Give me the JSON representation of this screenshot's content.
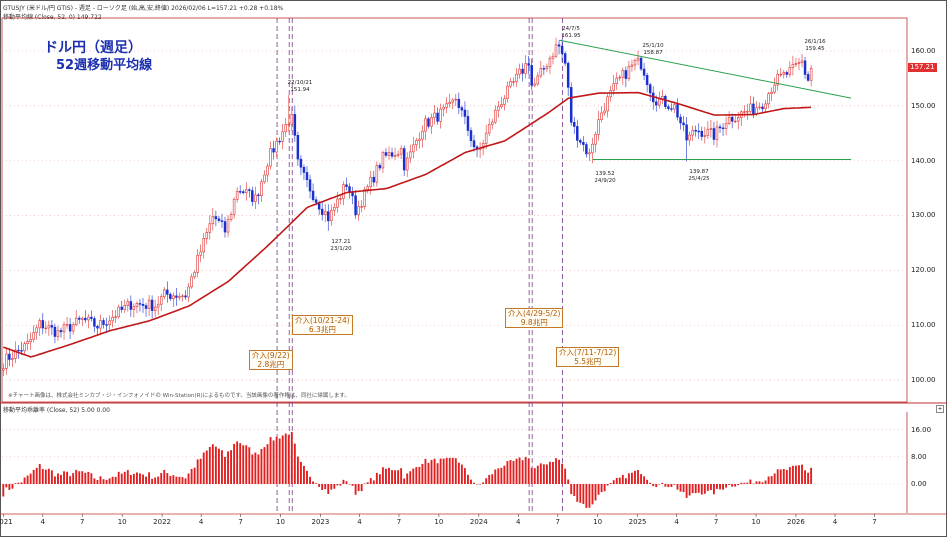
{
  "header": {
    "line1": "GTUSJY (米ドル/円 GTIS) - 週足 - ローソク足 (始,高,安,終値) 2026/02/06 L=157.21 +0.28 +0.18%",
    "line2": "移動平均線 (Close, 52, 0) 149.722"
  },
  "title": {
    "line1": "ドル円（週足）",
    "line2": "52週移動平均線"
  },
  "lower_panel_header": "移動平均乖離率 (Close, 52) 5.00 0.00",
  "note": "※チャート画像は、株式会社ミンカブ・ジ・インフォノイドの Win-Station(R)によるものです。当該画像の著作権は、同社に帰属します。",
  "last_price_label": "157.21",
  "colors": {
    "up": "#e03030",
    "down": "#1a2fd0",
    "ma": "#c01818",
    "trend": "#2aa050",
    "guide": "#7a3a8a",
    "deviation": "#e02020"
  },
  "annotations": [
    {
      "id": "int1",
      "line1": "介入(9/22)",
      "line2": "2.8兆円"
    },
    {
      "id": "int2",
      "line1": "介入(10/21-24)",
      "line2": "6.3兆円"
    },
    {
      "id": "int3",
      "line1": "介入(4/29-5/2)",
      "line2": "9.8兆円"
    },
    {
      "id": "int4",
      "line1": "介入(7/11-7/12)",
      "line2": "5.5兆円"
    }
  ],
  "price_labels": [
    {
      "date": "22/10/21",
      "price": "151.94"
    },
    {
      "date": "23/1/20",
      "price": "127.21"
    },
    {
      "date": "24/7/5",
      "price": "161.95"
    },
    {
      "date": "24/9/20",
      "price": "139.52"
    },
    {
      "date": "25/1/10",
      "price": "158.87"
    },
    {
      "date": "25/4/25",
      "price": "139.87"
    },
    {
      "date": "26/1/16",
      "price": "159.45"
    }
  ],
  "chart_data": {
    "type": "candlestick",
    "title": "ドル円（週足） 52週移動平均線",
    "yticks": [
      "100.00",
      "110.00",
      "120.00",
      "130.00",
      "140.00",
      "150.00",
      "160.00"
    ],
    "lower_yticks": [
      "16.00",
      "8.00",
      "0.00"
    ],
    "xticks": [
      "2021",
      "4",
      "7",
      "10",
      "2022",
      "4",
      "7",
      "10",
      "2023",
      "4",
      "7",
      "10",
      "2024",
      "4",
      "7",
      "10",
      "2025",
      "4",
      "7",
      "10",
      "2026",
      "4",
      "7"
    ],
    "ylim": [
      96,
      166
    ],
    "anchors": [
      [
        "2020-12-31",
        103.2
      ],
      [
        "2021-01-08",
        103.9
      ],
      [
        "2021-02-26",
        106.5
      ],
      [
        "2021-03-26",
        110.3
      ],
      [
        "2021-05-07",
        108.6
      ],
      [
        "2021-07-02",
        111.0
      ],
      [
        "2021-08-06",
        109.8
      ],
      [
        "2021-10-22",
        113.9
      ],
      [
        "2021-12-17",
        113.6
      ],
      [
        "2022-01-07",
        115.6
      ],
      [
        "2022-02-25",
        115.5
      ],
      [
        "2022-03-25",
        122.1
      ],
      [
        "2022-04-29",
        130.0
      ],
      [
        "2022-05-27",
        127.1
      ],
      [
        "2022-06-24",
        135.0
      ],
      [
        "2022-08-05",
        133.0
      ],
      [
        "2022-09-02",
        140.2
      ],
      [
        "2022-09-23",
        143.4
      ],
      [
        "2022-10-21",
        147.6
      ],
      [
        "2022-10-28",
        147.5
      ],
      [
        "2022-11-11",
        138.8
      ],
      [
        "2022-12-23",
        132.8
      ],
      [
        "2023-01-20",
        129.5
      ],
      [
        "2023-03-03",
        136.0
      ],
      [
        "2023-03-24",
        130.7
      ],
      [
        "2023-05-26",
        140.6
      ],
      [
        "2023-07-07",
        142.1
      ],
      [
        "2023-07-14",
        138.8
      ],
      [
        "2023-08-25",
        146.4
      ],
      [
        "2023-10-27",
        149.7
      ],
      [
        "2023-11-10",
        151.5
      ],
      [
        "2023-12-29",
        141.0
      ],
      [
        "2024-02-16",
        150.2
      ],
      [
        "2024-04-26",
        158.3
      ],
      [
        "2024-05-03",
        153.0
      ],
      [
        "2024-06-28",
        160.9
      ],
      [
        "2024-07-05",
        160.8
      ],
      [
        "2024-07-19",
        157.5
      ],
      [
        "2024-08-02",
        146.5
      ],
      [
        "2024-09-13",
        140.8
      ],
      [
        "2024-09-20",
        143.9
      ],
      [
        "2024-10-11",
        149.1
      ],
      [
        "2024-11-15",
        154.3
      ],
      [
        "2024-12-27",
        157.9
      ],
      [
        "2025-01-10",
        157.7
      ],
      [
        "2025-02-07",
        151.4
      ],
      [
        "2025-03-28",
        149.8
      ],
      [
        "2025-04-25",
        143.7
      ],
      [
        "2025-05-16",
        145.7
      ],
      [
        "2025-06-27",
        144.6
      ],
      [
        "2025-07-25",
        147.5
      ],
      [
        "2025-09-26",
        149.5
      ],
      [
        "2025-10-17",
        150.6
      ],
      [
        "2025-11-14",
        154.5
      ],
      [
        "2025-12-26",
        156.6
      ],
      [
        "2026-01-16",
        158.1
      ],
      [
        "2026-01-23",
        155.7
      ],
      [
        "2026-01-30",
        154.7
      ],
      [
        "2026-02-06",
        157.2
      ]
    ],
    "extremes": [
      [
        "2022-10-21",
        151.94,
        "high"
      ],
      [
        "2023-01-20",
        127.21,
        "low"
      ],
      [
        "2024-07-05",
        161.95,
        "high"
      ],
      [
        "2024-09-20",
        139.52,
        "low"
      ],
      [
        "2025-01-10",
        158.87,
        "high"
      ],
      [
        "2025-04-25",
        139.87,
        "low"
      ],
      [
        "2026-01-16",
        159.45,
        "high"
      ]
    ],
    "ma52_anchors": [
      [
        "2020-12-31",
        106.0
      ],
      [
        "2021-03-05",
        104.2
      ],
      [
        "2021-06-04",
        106.5
      ],
      [
        "2021-09-03",
        109.0
      ],
      [
        "2021-12-03",
        110.8
      ],
      [
        "2022-03-04",
        113.5
      ],
      [
        "2022-06-03",
        118.0
      ],
      [
        "2022-09-02",
        124.5
      ],
      [
        "2022-12-02",
        131.5
      ],
      [
        "2023-03-03",
        134.2
      ],
      [
        "2023-06-02",
        134.9
      ],
      [
        "2023-09-01",
        137.5
      ],
      [
        "2023-12-01",
        141.5
      ],
      [
        "2024-03-01",
        143.6
      ],
      [
        "2024-06-07",
        148.6
      ],
      [
        "2024-07-26",
        151.4
      ],
      [
        "2024-10-04",
        152.3
      ],
      [
        "2025-01-03",
        152.4
      ],
      [
        "2025-04-04",
        150.4
      ],
      [
        "2025-06-27",
        148.3
      ],
      [
        "2025-09-26",
        148.4
      ],
      [
        "2025-12-05",
        149.5
      ],
      [
        "2026-02-06",
        149.72
      ]
    ],
    "trendline": {
      "from": [
        "2024-07-05",
        161.95
      ],
      "to": [
        "2026-05-08",
        151.4
      ]
    },
    "support": {
      "from": [
        "2024-09-20",
        140.2
      ],
      "to": [
        "2026-05-08",
        140.2
      ]
    },
    "vertical_guides": [
      "2022-09-23",
      "2022-10-21",
      "2022-10-28",
      "2024-04-26",
      "2024-05-03",
      "2024-07-12"
    ]
  }
}
